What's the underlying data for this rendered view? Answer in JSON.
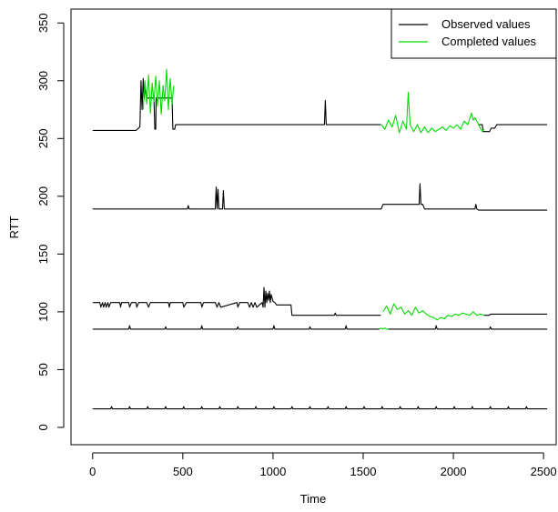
{
  "chart_data": {
    "type": "line",
    "xlabel": "Time",
    "ylabel": "RTT",
    "xlim": [
      -120,
      2570
    ],
    "ylim": [
      -15,
      362
    ],
    "xticks": [
      0,
      500,
      1000,
      1500,
      2000,
      2500
    ],
    "yticks": [
      0,
      50,
      100,
      150,
      200,
      250,
      300,
      350
    ],
    "legend": {
      "position": "top-right",
      "entries": [
        {
          "label": "Observed values",
          "color": "#000000"
        },
        {
          "label": "Completed values",
          "color": "#00dd00"
        }
      ]
    },
    "series": [
      {
        "name": "Observed values",
        "color": "#000000",
        "lines": [
          {
            "x": [
              0,
              240,
              262,
              268,
              274,
              280,
              286,
              292,
              300,
              340,
              345,
              350,
              352,
              440,
              445,
              455,
              460,
              1280,
              1285,
              1290,
              1295,
              1300,
              1598
            ],
            "y": [
              257,
              257,
              260,
              300,
              275,
              302,
              285,
              295,
              285,
              285,
              258,
              258,
              285,
              285,
              258,
              258,
              262,
              262,
              262,
              283,
              262,
              262,
              262
            ]
          },
          {
            "x": [
              2140,
              2160,
              2165,
              2200,
              2210,
              2230,
              2240,
              2520
            ],
            "y": [
              262,
              262,
              256,
              256,
              259,
              259,
              262,
              262
            ]
          },
          {
            "x": [
              0,
              525,
              530,
              535,
              680,
              685,
              690,
              695,
              700,
              720,
              725,
              730,
              1600,
              1610,
              1810,
              1815,
              1820,
              1825,
              1830,
              1840,
              2120,
              2125,
              2130,
              2140,
              2520
            ],
            "y": [
              189,
              189,
              192,
              189,
              189,
              208,
              189,
              206,
              189,
              189,
              205,
              189,
              189,
              193,
              193,
              211,
              193,
              193,
              193,
              189,
              189,
              193,
              189,
              188,
              188
            ]
          },
          {
            "x": [
              0,
              40,
              45,
              55,
              60,
              70,
              75,
              85,
              90,
              100,
              105,
              150,
              155,
              160,
              165,
              200,
              205,
              215,
              220,
              240,
              245,
              255,
              260,
              300,
              310,
              320,
              330,
              420,
              425,
              430,
              435,
              500,
              505,
              520,
              525,
              600,
              605,
              615,
              620,
              680,
              690,
              700,
              710,
              800,
              805,
              815,
              820,
              860,
              870,
              880,
              890,
              900,
              910,
              940,
              945,
              950,
              955,
              960,
              965,
              970,
              975,
              980,
              985,
              990,
              1000,
              1010,
              1020,
              1040,
              1050,
              1100,
              1105,
              1340,
              1345,
              1350,
              1598
            ],
            "y": [
              108,
              108,
              104,
              108,
              104,
              108,
              104,
              108,
              104,
              108,
              108,
              108,
              104,
              108,
              108,
              108,
              104,
              108,
              108,
              108,
              104,
              108,
              108,
              108,
              104,
              108,
              108,
              108,
              104,
              108,
              108,
              108,
              104,
              108,
              108,
              108,
              104,
              108,
              108,
              108,
              104,
              108,
              104,
              108,
              104,
              108,
              108,
              108,
              104,
              108,
              104,
              108,
              104,
              108,
              104,
              121,
              104,
              118,
              108,
              116,
              110,
              118,
              108,
              115,
              109,
              108,
              106,
              106,
              106,
              106,
              97,
              97,
              99,
              97,
              97
            ]
          },
          {
            "x": [
              2170,
              2200,
              2205,
              2520
            ],
            "y": [
              97,
              97,
              98,
              98
            ]
          },
          {
            "x": [
              0,
              200,
              205,
              210,
              400,
              405,
              410,
              600,
              605,
              610,
              800,
              805,
              810,
              1000,
              1005,
              1010,
              1200,
              1205,
              1210,
              1400,
              1405,
              1410,
              1590
            ],
            "y": [
              85,
              85,
              88,
              85,
              85,
              87,
              85,
              85,
              88,
              85,
              85,
              87,
              85,
              85,
              88,
              85,
              85,
              87,
              85,
              85,
              88,
              85,
              85
            ]
          },
          {
            "x": [
              1640,
              1900,
              1905,
              1910,
              2200,
              2205,
              2210,
              2520
            ],
            "y": [
              85,
              85,
              88,
              85,
              85,
              87,
              85,
              85
            ]
          },
          {
            "x": [
              0,
              100,
              105,
              110,
              200,
              205,
              210,
              300,
              305,
              310,
              400,
              405,
              410,
              500,
              505,
              510,
              600,
              605,
              610,
              700,
              705,
              710,
              800,
              805,
              810,
              900,
              905,
              910,
              1000,
              1005,
              1010,
              1100,
              1105,
              1110,
              1200,
              1205,
              1210,
              1300,
              1305,
              1310,
              1400,
              1405,
              1410,
              1500,
              1505,
              1510,
              1600,
              1605,
              1610,
              1700,
              1705,
              1710,
              1800,
              1805,
              1810,
              1900,
              1905,
              1910,
              2000,
              2005,
              2010,
              2100,
              2105,
              2110,
              2200,
              2205,
              2210,
              2300,
              2305,
              2310,
              2400,
              2405,
              2410,
              2520
            ],
            "y": [
              16,
              16,
              18,
              16,
              16,
              18,
              16,
              16,
              18,
              16,
              16,
              18,
              16,
              16,
              18,
              16,
              16,
              18,
              16,
              16,
              18,
              16,
              16,
              18,
              16,
              16,
              18,
              16,
              16,
              18,
              16,
              16,
              18,
              16,
              16,
              18,
              16,
              16,
              18,
              16,
              16,
              18,
              16,
              16,
              18,
              16,
              16,
              18,
              16,
              16,
              18,
              16,
              16,
              18,
              16,
              16,
              18,
              16,
              16,
              18,
              16,
              16,
              18,
              16,
              16,
              18,
              16,
              16,
              18,
              16,
              16,
              18,
              16,
              16
            ]
          }
        ]
      },
      {
        "name": "Completed values",
        "color": "#00dd00",
        "lines": [
          {
            "x": [
              280,
              290,
              300,
              310,
              320,
              330,
              340,
              350,
              360,
              370,
              380,
              390,
              400,
              410,
              420,
              430,
              440,
              450
            ],
            "y": [
              275,
              300,
              280,
              305,
              272,
              298,
              282,
              304,
              278,
              300,
              271,
              296,
              283,
              310,
              275,
              302,
              280,
              296
            ]
          },
          {
            "x": [
              1600,
              1620,
              1640,
              1660,
              1680,
              1700,
              1720,
              1740,
              1750,
              1760,
              1780,
              1800,
              1820,
              1840,
              1860,
              1880,
              1900,
              1920,
              1940,
              1960,
              1980,
              2000,
              2020,
              2040,
              2060,
              2080,
              2100,
              2110,
              2120,
              2140,
              2160,
              2170
            ],
            "y": [
              262,
              258,
              266,
              260,
              270,
              255,
              265,
              258,
              290,
              262,
              256,
              262,
              255,
              260,
              255,
              259,
              256,
              258,
              260,
              257,
              261,
              259,
              262,
              258,
              265,
              262,
              272,
              266,
              268,
              262,
              256,
              258
            ]
          },
          {
            "x": [
              1610,
              1630,
              1650,
              1670,
              1690,
              1710,
              1730,
              1750,
              1770,
              1790,
              1810,
              1830,
              1850,
              1870,
              1890,
              1910,
              1930,
              1950,
              1970,
              1990,
              2010,
              2030,
              2050,
              2070,
              2090,
              2110,
              2130,
              2150,
              2170
            ],
            "y": [
              100,
              105,
              98,
              107,
              102,
              104,
              98,
              101,
              97,
              104,
              99,
              101,
              98,
              96,
              95,
              93,
              95,
              94,
              97,
              96,
              98,
              97,
              99,
              98,
              97,
              100,
              97,
              98,
              97
            ]
          },
          {
            "x": [
              1590,
              1600,
              1610,
              1620,
              1630,
              1640
            ],
            "y": [
              85,
              86,
              85,
              86,
              85,
              85
            ]
          }
        ]
      }
    ]
  }
}
